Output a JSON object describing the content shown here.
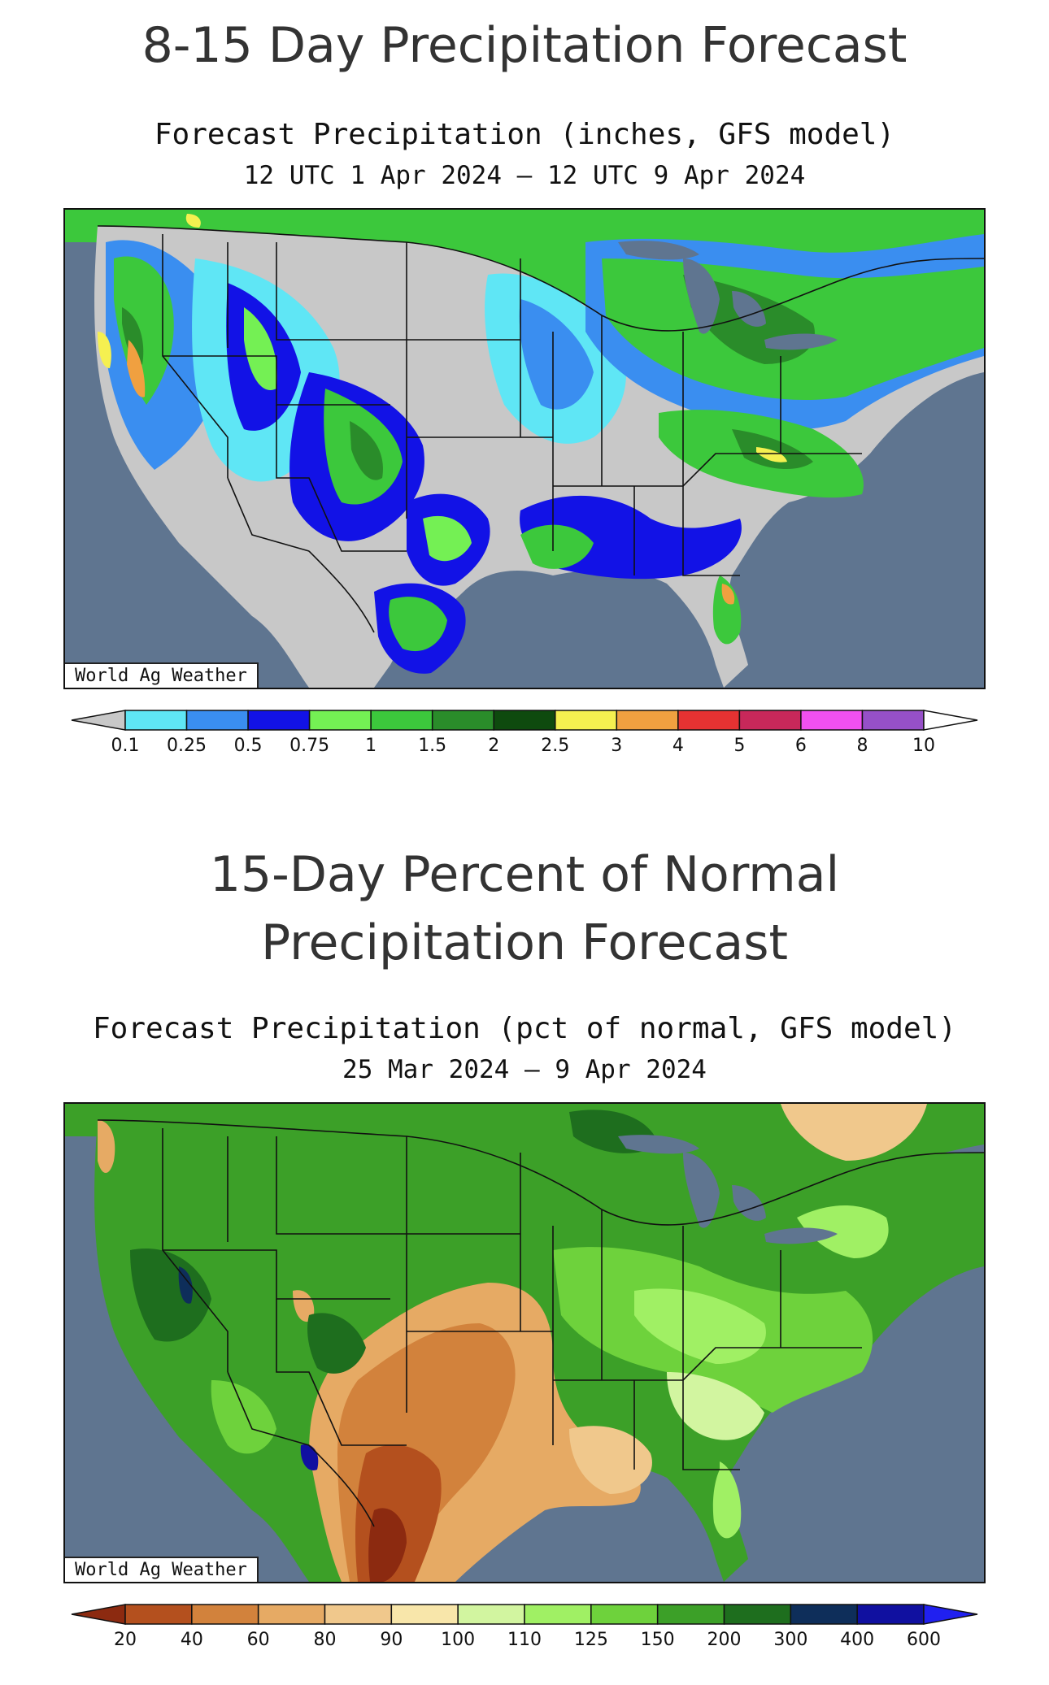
{
  "map1": {
    "section_title": "8-15 Day Precipitation Forecast",
    "heading_line1": "Forecast Precipitation (inches, GFS model)",
    "heading_line2": "12 UTC 1 Apr 2024 — 12 UTC 9 Apr 2024",
    "credit": "World Ag Weather",
    "legend": {
      "labels": [
        "0.1",
        "0.25",
        "0.5",
        "0.75",
        "1",
        "1.5",
        "2",
        "2.5",
        "3",
        "4",
        "5",
        "6",
        "8",
        "10"
      ],
      "colors": [
        "#c8c8c8",
        "#5fe6f5",
        "#3a8ef0",
        "#1212e6",
        "#74f054",
        "#3cc83c",
        "#2a8c2a",
        "#0e4a0e",
        "#f5f050",
        "#f0a040",
        "#e63232",
        "#c8285a",
        "#f050f0",
        "#9650c8",
        "#ffffff"
      ]
    }
  },
  "map2": {
    "section_title": "15-Day Percent of Normal Precipitation Forecast",
    "heading_line1": "Forecast Precipitation (pct of normal, GFS model)",
    "heading_line2": "25 Mar 2024 — 9 Apr 2024",
    "credit": "World Ag Weather",
    "legend": {
      "labels": [
        "20",
        "40",
        "60",
        "80",
        "90",
        "100",
        "110",
        "125",
        "150",
        "200",
        "300",
        "400",
        "600"
      ],
      "colors": [
        "#8c2a10",
        "#b4501e",
        "#d2823c",
        "#e6aa64",
        "#f0c88c",
        "#f8e6aa",
        "#d2f5a0",
        "#a0f064",
        "#6ed23c",
        "#3ca028",
        "#1e6e1e",
        "#0e2e5a",
        "#1010a0",
        "#2020f0"
      ]
    }
  }
}
